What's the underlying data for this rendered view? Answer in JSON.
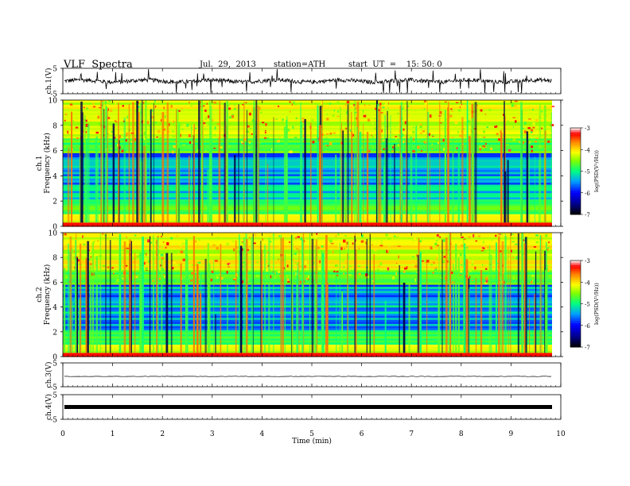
{
  "header": {
    "title": "VLF  Spectra",
    "date": "Jul.  29,  2013",
    "station": "station=ATH",
    "start": "start  UT  =    15: 50: 0"
  },
  "chart_data": [
    {
      "type": "line",
      "panel": "ch1-waveform",
      "ylabel": "ch.1(V)",
      "ylim": [
        -5,
        5
      ],
      "yticks": [
        "5",
        "-5"
      ],
      "xlim": [
        0,
        10
      ],
      "description": "noisy waveform centred near 0 V with spikes"
    },
    {
      "type": "heatmap",
      "panel": "ch1-spectrogram",
      "ylabel_channel": "ch.1",
      "ylabel": "Frequency  (kHz)",
      "ylim": [
        0,
        10
      ],
      "yticks": [
        "0",
        "2",
        "4",
        "6",
        "8",
        "10"
      ],
      "xlim": [
        0,
        9.85
      ],
      "colorbar": {
        "label": "log(PSD(V²/Hz))",
        "range": [
          -7,
          -3
        ],
        "ticks": [
          "-3",
          "-4",
          "-5",
          "-6",
          "-7"
        ],
        "colormap": [
          "#000000",
          "#00008b",
          "#0000ff",
          "#00a0ff",
          "#00ff80",
          "#80ff00",
          "#ffff00",
          "#ff8000",
          "#ff0000",
          "#ffffff"
        ]
      }
    },
    {
      "type": "heatmap",
      "panel": "ch2-spectrogram",
      "ylabel_channel": "ch.2",
      "ylabel": "Frequency  (kHz)",
      "ylim": [
        0,
        10
      ],
      "yticks": [
        "0",
        "2",
        "4",
        "6",
        "8",
        "10"
      ],
      "xlim": [
        0,
        9.85
      ],
      "colorbar": {
        "label": "log(PSD(V²/Hz))",
        "range": [
          -7,
          -3
        ],
        "ticks": [
          "-3",
          "-4",
          "-5",
          "-6",
          "-7"
        ]
      }
    },
    {
      "type": "line",
      "panel": "ch3-waveform",
      "ylabel": "ch.3(V)",
      "ylim": [
        -5,
        5
      ],
      "yticks": [
        "5",
        "-5"
      ],
      "description": "flat line near 0 V"
    },
    {
      "type": "line",
      "panel": "ch4-waveform",
      "ylabel": "ch.4(V)",
      "ylim": [
        -5,
        5
      ],
      "yticks": [
        "5",
        "-5"
      ],
      "description": "thick band near 0 V"
    }
  ],
  "x_axis": {
    "label": "Time  (min)",
    "range": [
      0,
      10
    ],
    "ticks": [
      "0",
      "1",
      "2",
      "3",
      "4",
      "5",
      "6",
      "7",
      "8",
      "9",
      "10"
    ]
  }
}
